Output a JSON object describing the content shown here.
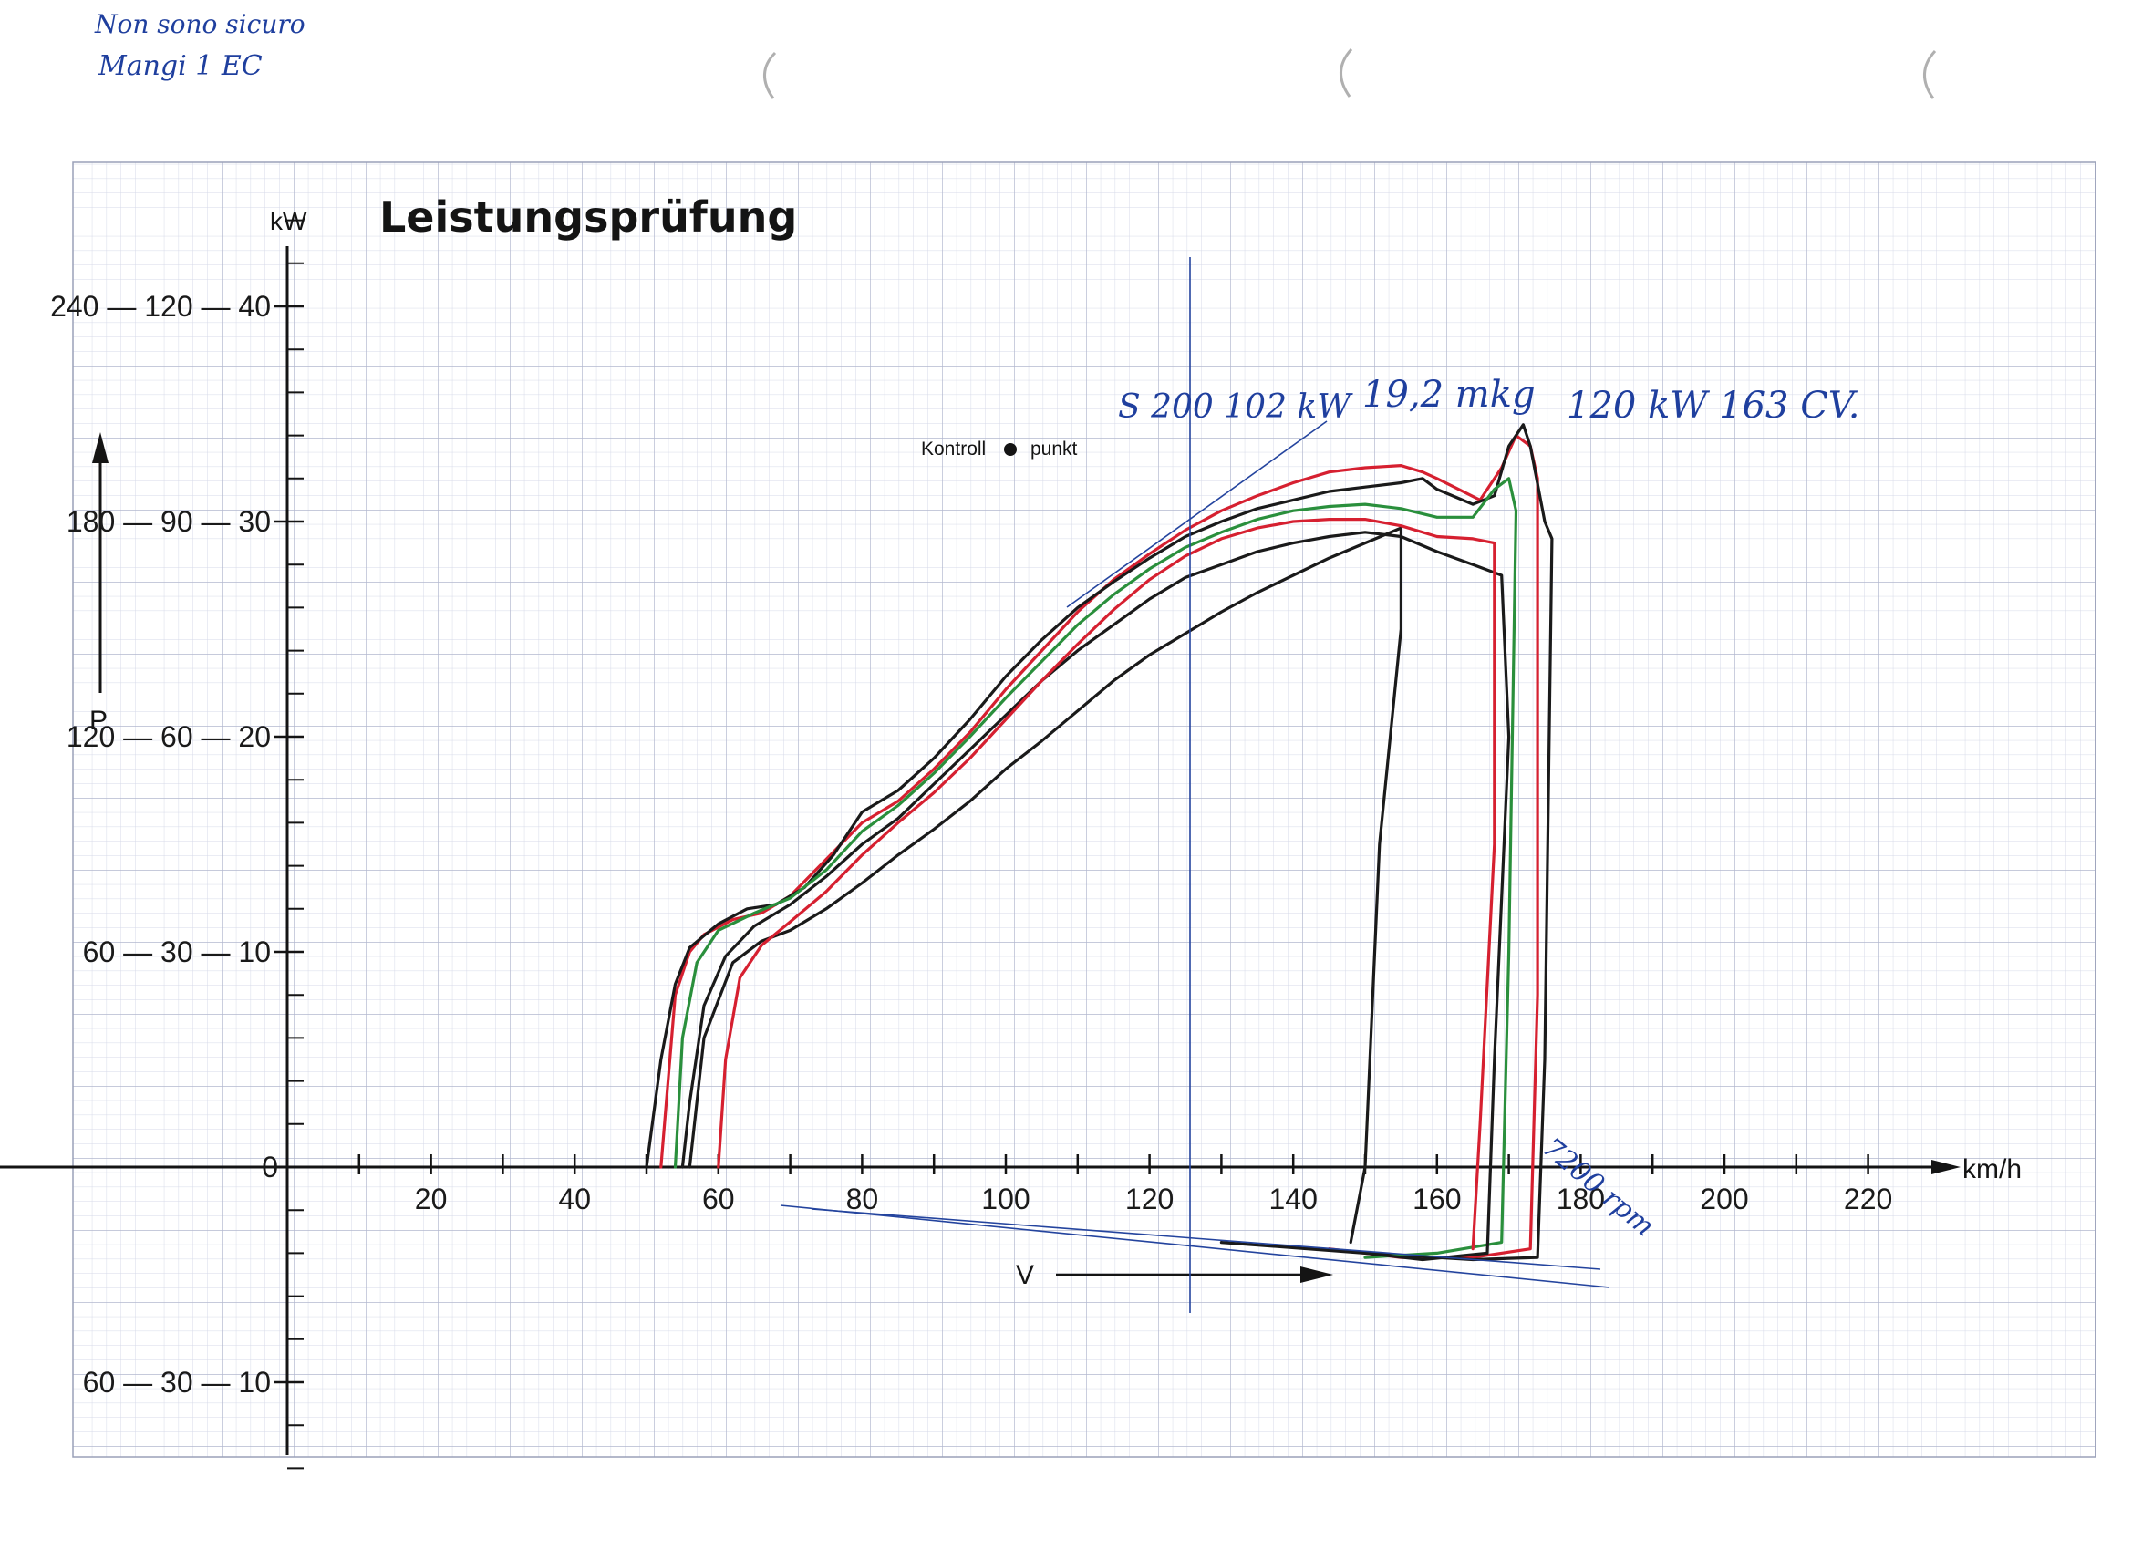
{
  "page": {
    "header_note_line1": "Non sono sicuro",
    "header_note_line2": "Mangi 1 EC"
  },
  "chart_data": {
    "type": "line",
    "title": "Leistungsprüfung",
    "xlabel": "km/h",
    "ylabel": "kW",
    "x_axis_arrow_label": "V",
    "y_axis_arrow_label": "P",
    "control_point_label_left": "Kontroll",
    "control_point_label_right": "punkt",
    "grid": true,
    "xlim": [
      -40,
      235
    ],
    "ylim": [
      -40,
      48
    ],
    "x_ticks": [
      {
        "v": 20,
        "label": "20"
      },
      {
        "v": 40,
        "label": "40"
      },
      {
        "v": 60,
        "label": "60"
      },
      {
        "v": 80,
        "label": "80"
      },
      {
        "v": 100,
        "label": "100"
      },
      {
        "v": 120,
        "label": "120"
      },
      {
        "v": 140,
        "label": "140"
      },
      {
        "v": 160,
        "label": "160"
      },
      {
        "v": 180,
        "label": "180"
      },
      {
        "v": 200,
        "label": "200"
      },
      {
        "v": 220,
        "label": "220"
      }
    ],
    "y_ticks": [
      {
        "v": 40,
        "label": "240 — 120 — 40"
      },
      {
        "v": 30,
        "label": "180 — 90 — 30"
      },
      {
        "v": 20,
        "label": "120 — 60 — 20"
      },
      {
        "v": 10,
        "label": "60 — 30 — 10"
      },
      {
        "v": 0,
        "label": "0"
      },
      {
        "v": -10,
        "label": "60 — 30 — 10"
      }
    ],
    "annotations": {
      "left_peak": "S 200   102 kW",
      "torque": "19,2 mkg",
      "right_peak": "120 kW   163 CV.",
      "rpm_note": "7200 rpm"
    },
    "series": [
      {
        "color": "#d62030",
        "values": [
          [
            52,
            0
          ],
          [
            53,
            4
          ],
          [
            54,
            8
          ],
          [
            56,
            10
          ],
          [
            58,
            10.8
          ],
          [
            62,
            11.5
          ],
          [
            66,
            11.8
          ],
          [
            70,
            12.6
          ],
          [
            75,
            14.3
          ],
          [
            80,
            16.0
          ],
          [
            85,
            17.0
          ],
          [
            90,
            18.5
          ],
          [
            95,
            20.2
          ],
          [
            100,
            22.2
          ],
          [
            105,
            24.0
          ],
          [
            110,
            25.8
          ],
          [
            115,
            27.3
          ],
          [
            120,
            28.5
          ],
          [
            125,
            29.6
          ],
          [
            130,
            30.5
          ],
          [
            135,
            31.2
          ],
          [
            140,
            31.8
          ],
          [
            145,
            32.3
          ],
          [
            150,
            32.5
          ],
          [
            155,
            32.6
          ],
          [
            158,
            32.3
          ],
          [
            160,
            32.0
          ],
          [
            163,
            31.5
          ],
          [
            166,
            31.0
          ],
          [
            169,
            32.5
          ],
          [
            171,
            34.0
          ],
          [
            173,
            33.5
          ],
          [
            174,
            32.0
          ],
          [
            174,
            8
          ],
          [
            173,
            -3.8
          ],
          [
            165,
            -4.2
          ],
          [
            155,
            -4.2
          ],
          [
            145,
            -3.8
          ]
        ]
      },
      {
        "color": "#1a1a1a",
        "values": [
          [
            50,
            0
          ],
          [
            52,
            5
          ],
          [
            54,
            8.5
          ],
          [
            56,
            10.2
          ],
          [
            60,
            11.3
          ],
          [
            64,
            12.0
          ],
          [
            68,
            12.2
          ],
          [
            72,
            13.0
          ],
          [
            76,
            14.5
          ],
          [
            80,
            16.5
          ],
          [
            85,
            17.5
          ],
          [
            90,
            19.0
          ],
          [
            95,
            20.8
          ],
          [
            100,
            22.8
          ],
          [
            105,
            24.5
          ],
          [
            110,
            26.0
          ],
          [
            115,
            27.2
          ],
          [
            120,
            28.3
          ],
          [
            125,
            29.3
          ],
          [
            130,
            30.0
          ],
          [
            135,
            30.6
          ],
          [
            140,
            31.0
          ],
          [
            145,
            31.4
          ],
          [
            150,
            31.6
          ],
          [
            155,
            31.8
          ],
          [
            158,
            32.0
          ],
          [
            160,
            31.5
          ],
          [
            165,
            30.8
          ],
          [
            168,
            31.2
          ],
          [
            170,
            33.5
          ],
          [
            172,
            34.5
          ],
          [
            173,
            33.5
          ],
          [
            175,
            30.0
          ],
          [
            176,
            29.2
          ],
          [
            175,
            5
          ],
          [
            174,
            -4.2
          ],
          [
            165,
            -4.3
          ],
          [
            150,
            -4.0
          ],
          [
            130,
            -3.5
          ]
        ]
      },
      {
        "color": "#2a8f3c",
        "values": [
          [
            54,
            0
          ],
          [
            55,
            6
          ],
          [
            57,
            9.5
          ],
          [
            60,
            11.0
          ],
          [
            65,
            11.8
          ],
          [
            70,
            12.5
          ],
          [
            75,
            13.8
          ],
          [
            80,
            15.6
          ],
          [
            85,
            16.8
          ],
          [
            90,
            18.3
          ],
          [
            95,
            20.0
          ],
          [
            100,
            21.8
          ],
          [
            105,
            23.5
          ],
          [
            110,
            25.2
          ],
          [
            115,
            26.6
          ],
          [
            120,
            27.8
          ],
          [
            125,
            28.8
          ],
          [
            130,
            29.5
          ],
          [
            135,
            30.1
          ],
          [
            140,
            30.5
          ],
          [
            145,
            30.7
          ],
          [
            150,
            30.8
          ],
          [
            155,
            30.6
          ],
          [
            160,
            30.2
          ],
          [
            165,
            30.2
          ],
          [
            168,
            31.5
          ],
          [
            170,
            32.0
          ],
          [
            171,
            30.5
          ],
          [
            170,
            10
          ],
          [
            169,
            -3.5
          ],
          [
            160,
            -4.0
          ],
          [
            150,
            -4.2
          ]
        ]
      },
      {
        "color": "#1a1a1a",
        "values": [
          [
            55,
            0
          ],
          [
            56,
            3
          ],
          [
            58,
            7.5
          ],
          [
            61,
            9.8
          ],
          [
            65,
            11.2
          ],
          [
            70,
            12.2
          ],
          [
            75,
            13.5
          ],
          [
            80,
            15.0
          ],
          [
            85,
            16.2
          ],
          [
            90,
            17.8
          ],
          [
            95,
            19.4
          ],
          [
            100,
            21.0
          ],
          [
            105,
            22.6
          ],
          [
            110,
            24.0
          ],
          [
            115,
            25.2
          ],
          [
            120,
            26.4
          ],
          [
            125,
            27.4
          ],
          [
            130,
            28.0
          ],
          [
            135,
            28.6
          ],
          [
            140,
            29.0
          ],
          [
            145,
            29.3
          ],
          [
            150,
            29.5
          ],
          [
            155,
            29.3
          ],
          [
            160,
            28.6
          ],
          [
            165,
            28.0
          ],
          [
            169,
            27.5
          ],
          [
            170,
            20
          ],
          [
            168,
            5
          ],
          [
            167,
            -4.0
          ],
          [
            158,
            -4.3
          ],
          [
            150,
            -4.0
          ]
        ]
      },
      {
        "color": "#1a1a1a",
        "values": [
          [
            56,
            0
          ],
          [
            58,
            6
          ],
          [
            62,
            9.5
          ],
          [
            66,
            10.5
          ],
          [
            70,
            11.0
          ],
          [
            75,
            12.0
          ],
          [
            80,
            13.2
          ],
          [
            85,
            14.5
          ],
          [
            90,
            15.7
          ],
          [
            95,
            17.0
          ],
          [
            100,
            18.5
          ],
          [
            105,
            19.8
          ],
          [
            110,
            21.2
          ],
          [
            115,
            22.6
          ],
          [
            120,
            23.8
          ],
          [
            125,
            24.8
          ],
          [
            130,
            25.8
          ],
          [
            135,
            26.7
          ],
          [
            140,
            27.5
          ],
          [
            145,
            28.3
          ],
          [
            150,
            29.0
          ],
          [
            155,
            29.7
          ],
          [
            155,
            25
          ],
          [
            152,
            15
          ],
          [
            150,
            0
          ],
          [
            148,
            -3.5
          ]
        ]
      },
      {
        "color": "#d62030",
        "values": [
          [
            60,
            0
          ],
          [
            61,
            5
          ],
          [
            63,
            8.8
          ],
          [
            66,
            10.3
          ],
          [
            70,
            11.4
          ],
          [
            75,
            12.8
          ],
          [
            80,
            14.5
          ],
          [
            85,
            16.0
          ],
          [
            90,
            17.4
          ],
          [
            95,
            19.0
          ],
          [
            100,
            20.8
          ],
          [
            105,
            22.6
          ],
          [
            110,
            24.3
          ],
          [
            115,
            25.9
          ],
          [
            120,
            27.3
          ],
          [
            125,
            28.4
          ],
          [
            130,
            29.2
          ],
          [
            135,
            29.7
          ],
          [
            140,
            30.0
          ],
          [
            145,
            30.1
          ],
          [
            150,
            30.1
          ],
          [
            155,
            29.8
          ],
          [
            160,
            29.3
          ],
          [
            165,
            29.2
          ],
          [
            168,
            29.0
          ],
          [
            168,
            15
          ],
          [
            166,
            2
          ],
          [
            165,
            -3.8
          ]
        ]
      }
    ]
  }
}
